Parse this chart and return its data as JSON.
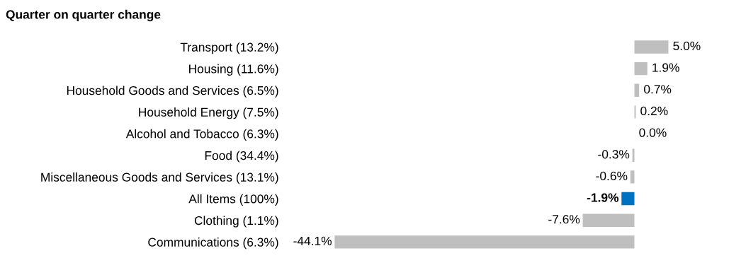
{
  "chart_data": {
    "type": "bar",
    "orientation": "horizontal",
    "title": "Quarter on quarter change",
    "categories": [
      "Transport (13.2%)",
      "Housing (11.6%)",
      "Household Goods and Services (6.5%)",
      "Household Energy (7.5%)",
      "Alcohol and Tobacco (6.3%)",
      "Food (34.4%)",
      "Miscellaneous Goods and Services (13.1%)",
      "All Items (100%)",
      "Clothing (1.1%)",
      "Communications (6.3%)"
    ],
    "values": [
      5.0,
      1.9,
      0.7,
      0.2,
      0.0,
      -0.3,
      -0.6,
      -1.9,
      -7.6,
      -44.1
    ],
    "value_labels": [
      "5.0%",
      "1.9%",
      "0.7%",
      "0.2%",
      "0.0%",
      "-0.3%",
      "-0.6%",
      "-1.9%",
      "-7.6%",
      "-44.1%"
    ],
    "colors": [
      "#bfbfbf",
      "#bfbfbf",
      "#bfbfbf",
      "#bfbfbf",
      "#bfbfbf",
      "#bfbfbf",
      "#bfbfbf",
      "#0070c0",
      "#bfbfbf",
      "#bfbfbf"
    ],
    "grid": false,
    "legend": false
  }
}
